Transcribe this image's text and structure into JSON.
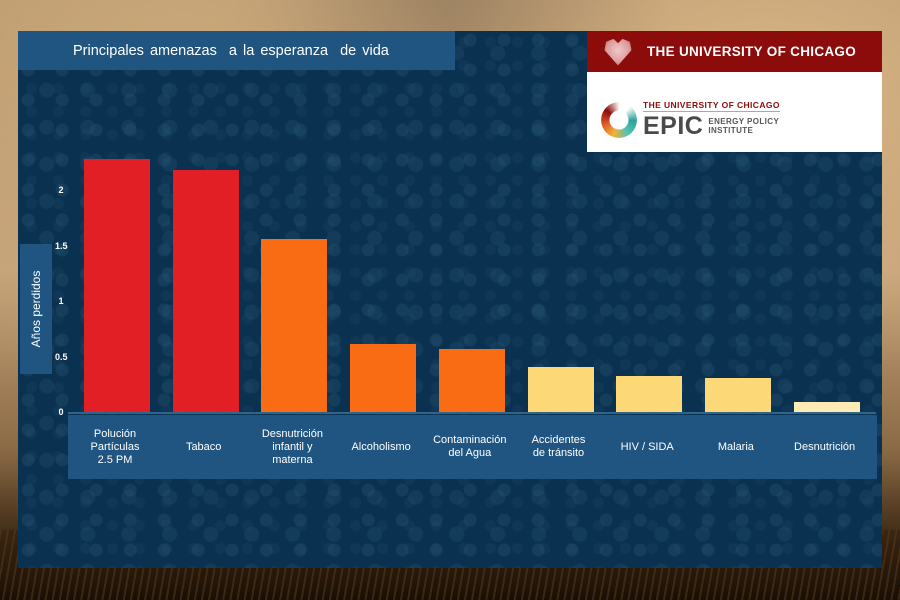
{
  "header": {
    "title": "Principales amenazas  a la esperanza  de vida"
  },
  "logos": {
    "university": "THE UNIVERSITY OF CHICAGO",
    "epic_university": "THE UNIVERSITY OF CHICAGO",
    "epic_name": "EPIC",
    "epic_sub_line1": "ENERGY POLICY",
    "epic_sub_line2": "INSTITUTE"
  },
  "colors": {
    "panel": "#0b3150",
    "band": "#1f5580",
    "red": "#e11f24",
    "orange": "#f96c14",
    "yellow": "#fdd877",
    "pale": "#feebb3",
    "uchicago_maroon": "#8c0b0b"
  },
  "chart_data": {
    "type": "bar",
    "title": "Principales amenazas  a la esperanza  de vida",
    "xlabel": "",
    "ylabel": "Años perdidos",
    "ylim": [
      0,
      2.4
    ],
    "yticks": [
      "0",
      "0.5",
      "1",
      "1.5",
      "2"
    ],
    "grid": false,
    "legend": null,
    "categories": [
      "Polución Partículas 2.5 PM",
      "Tabaco",
      "Desnutrición infantil y materna",
      "Alcoholismo",
      "Contaminación del Agua",
      "Accidentes de tránsito",
      "HIV / SIDA",
      "Malaria",
      "Desnutrición"
    ],
    "values": [
      2.28,
      2.18,
      1.56,
      0.61,
      0.57,
      0.41,
      0.32,
      0.31,
      0.09
    ],
    "bar_colors": [
      "#e11f24",
      "#e11f24",
      "#f96c14",
      "#f96c14",
      "#f96c14",
      "#fdd877",
      "#fdd877",
      "#fdd877",
      "#feebb3"
    ]
  },
  "xaxis": {
    "labels": [
      [
        "Polución",
        "Partículas",
        "2.5 PM"
      ],
      [
        "Tabaco"
      ],
      [
        "Desnutrición",
        "infantil y",
        "materna"
      ],
      [
        "Alcoholismo"
      ],
      [
        "Contaminación",
        "del Agua"
      ],
      [
        "Accidentes",
        "de tránsito"
      ],
      [
        "HIV / SIDA"
      ],
      [
        "Malaria"
      ],
      [
        "Desnutrición"
      ]
    ]
  }
}
